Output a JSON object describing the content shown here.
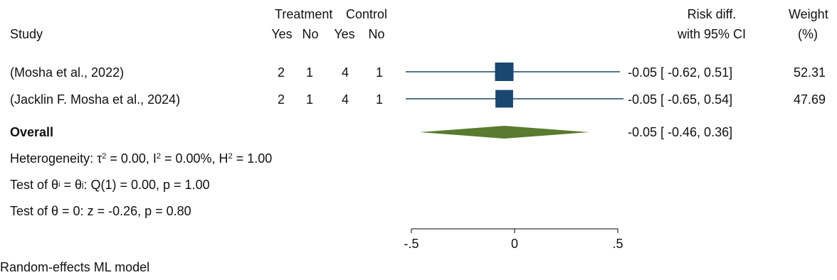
{
  "header": {
    "treatment": "Treatment",
    "control": "Control",
    "study": "Study",
    "yes1": "Yes",
    "no1": "No",
    "yes2": "Yes",
    "no2": "No",
    "rd_line1": "Risk diff.",
    "rd_line2": "with 95% CI",
    "weight_line1": "Weight",
    "weight_line2": "(%)"
  },
  "rows": [
    {
      "study": "(Mosha et al., 2022)",
      "t_yes": "2",
      "t_no": "1",
      "c_yes": "4",
      "c_no": "1",
      "ci": "-0.05 [ -0.62,  0.51]",
      "weight": "52.31"
    },
    {
      "study": "(Jacklin F. Mosha et al., 2024)",
      "t_yes": "2",
      "t_no": "1",
      "c_yes": "4",
      "c_no": "1",
      "ci": "-0.05 [ -0.65,  0.54]",
      "weight": "47.69"
    }
  ],
  "overall": {
    "label": "Overall",
    "ci": "-0.05 [ -0.46,  0.36]"
  },
  "stats": {
    "het_a": "Heterogeneity: τ",
    "het_b": " = 0.00, I",
    "het_c": " = 0.00%, H",
    "het_d": " = 1.00",
    "sq": "2",
    "test1_a": "Test of θ",
    "test1_i": "i",
    "test1_b": " = θ",
    "test1_j": "j",
    "test1_c": ": Q(1) = 0.00, p = 1.00",
    "test2": "Test of θ = 0: z = -0.26, p = 0.80"
  },
  "footer": "Random-effects ML model",
  "colors": {
    "study_line": "#1a476f",
    "study_marker": "#1a476f",
    "overall_diamond": "#5a7a2e",
    "axis": "#000000"
  },
  "chart_data": {
    "type": "forest",
    "xlim": [
      -0.5,
      0.5
    ],
    "xticks": [
      -0.5,
      0,
      0.5
    ],
    "xtick_labels": [
      "-.5",
      "0",
      ".5"
    ],
    "studies": [
      {
        "name": "(Mosha et al., 2022)",
        "estimate": -0.05,
        "ci_low": -0.62,
        "ci_high": 0.51,
        "weight": 52.31
      },
      {
        "name": "(Jacklin F. Mosha et al., 2024)",
        "estimate": -0.05,
        "ci_low": -0.65,
        "ci_high": 0.54,
        "weight": 47.69
      }
    ],
    "overall": {
      "estimate": -0.05,
      "ci_low": -0.46,
      "ci_high": 0.36
    }
  }
}
